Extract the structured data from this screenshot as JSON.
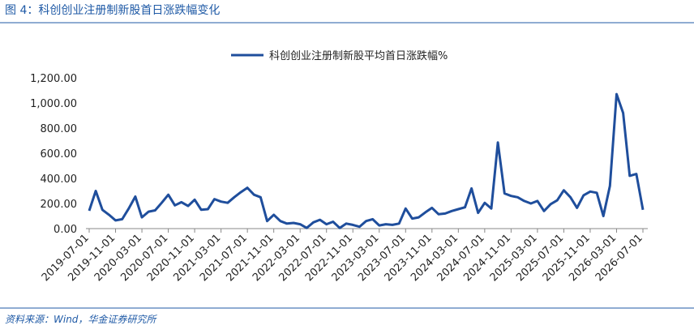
{
  "chart_data": {
    "type": "line",
    "title": "图 4：科创创业注册制新股首日涨跌幅变化",
    "source": "资料来源：Wind，华金证券研究所",
    "categories": [
      "2019-07-01",
      null,
      null,
      null,
      "2019-11-01",
      null,
      null,
      null,
      "2020-03-01",
      null,
      null,
      null,
      "2020-07-01",
      null,
      null,
      null,
      "2020-11-01",
      null,
      null,
      null,
      "2021-03-01",
      null,
      null,
      null,
      "2021-07-01",
      null,
      null,
      null,
      "2021-11-01",
      null,
      null,
      null,
      "2022-03-01",
      null,
      null,
      null,
      "2022-07-01",
      null,
      null,
      null,
      "2022-11-01",
      null,
      null,
      null,
      "2023-03-01",
      null,
      null,
      null,
      "2023-07-01",
      null,
      null,
      null,
      "2023-11-01",
      null,
      null,
      null,
      "2024-03-01",
      null,
      null,
      null,
      "2024-07-01",
      null,
      null,
      null,
      "2024-11-01",
      null,
      null,
      null,
      "2025-03-01",
      null,
      null,
      null,
      "2025-07-01",
      null,
      null,
      null,
      "2025-11-01",
      null,
      null,
      null,
      "2026-03-01",
      null,
      null,
      null,
      "2026-07-01"
    ],
    "series": [
      {
        "name": "科创创业注册制新股平均首日涨跌幅%",
        "color": "#1f4e9c",
        "values": [
          142,
          300,
          150,
          110,
          65,
          75,
          160,
          255,
          90,
          135,
          145,
          205,
          270,
          185,
          210,
          180,
          230,
          150,
          155,
          235,
          215,
          205,
          250,
          290,
          325,
          270,
          250,
          60,
          110,
          60,
          40,
          45,
          35,
          5,
          50,
          70,
          35,
          55,
          5,
          40,
          30,
          15,
          60,
          75,
          25,
          35,
          30,
          40,
          160,
          80,
          90,
          130,
          165,
          115,
          120,
          140,
          155,
          170,
          320,
          125,
          205,
          160,
          685,
          280,
          260,
          250,
          220,
          200,
          220,
          140,
          195,
          225,
          305,
          250,
          165,
          265,
          295,
          285,
          100,
          340,
          1070,
          920,
          420,
          435,
          150
        ]
      }
    ],
    "ylim": [
      0,
      1200
    ],
    "yticks": [
      {
        "value": 0,
        "label": "0.00"
      },
      {
        "value": 200,
        "label": "200.00"
      },
      {
        "value": 400,
        "label": "400.00"
      },
      {
        "value": 600,
        "label": "600.00"
      },
      {
        "value": 800,
        "label": "800.00"
      },
      {
        "value": 1000,
        "label": "1,000.00"
      },
      {
        "value": 1200,
        "label": "1,200.00"
      }
    ],
    "grid": false,
    "legend": "top"
  }
}
